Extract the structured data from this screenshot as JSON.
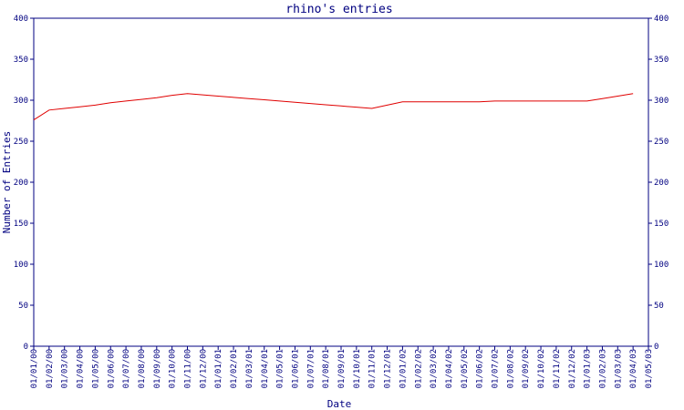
{
  "chart_data": {
    "type": "line",
    "title": "rhino's entries",
    "x_label": "Date",
    "y_label": "Number of Entries",
    "categories": [
      "01/01/00",
      "01/02/00",
      "01/03/00",
      "01/04/00",
      "01/05/00",
      "01/06/00",
      "01/07/00",
      "01/08/00",
      "01/09/00",
      "01/10/00",
      "01/11/00",
      "01/12/00",
      "01/01/01",
      "01/02/01",
      "01/03/01",
      "01/04/01",
      "01/05/01",
      "01/06/01",
      "01/07/01",
      "01/08/01",
      "01/09/01",
      "01/10/01",
      "01/11/01",
      "01/12/01",
      "01/01/02",
      "01/02/02",
      "01/03/02",
      "01/04/02",
      "01/05/02",
      "01/06/02",
      "01/07/02",
      "01/08/02",
      "01/09/02",
      "01/10/02",
      "01/11/02",
      "01/12/02",
      "01/01/03",
      "01/02/03",
      "01/03/03",
      "01/04/03",
      "01/05/03"
    ],
    "series": [
      {
        "name": "entries",
        "color": "#e00000",
        "values": [
          276,
          288,
          290,
          292,
          294,
          297,
          299,
          301,
          303,
          306,
          308,
          306.5,
          305,
          303.5,
          302,
          300.5,
          299,
          297.5,
          296,
          294.5,
          293,
          291.5,
          290,
          294,
          298,
          298,
          298,
          298,
          298,
          298,
          299,
          299,
          299,
          299,
          299,
          299,
          299,
          302,
          305,
          308,
          null
        ]
      }
    ],
    "ylim": [
      0,
      400
    ],
    "yticks": [
      0,
      50,
      100,
      150,
      200,
      250,
      300,
      350,
      400
    ],
    "axis_color": "#000080"
  }
}
